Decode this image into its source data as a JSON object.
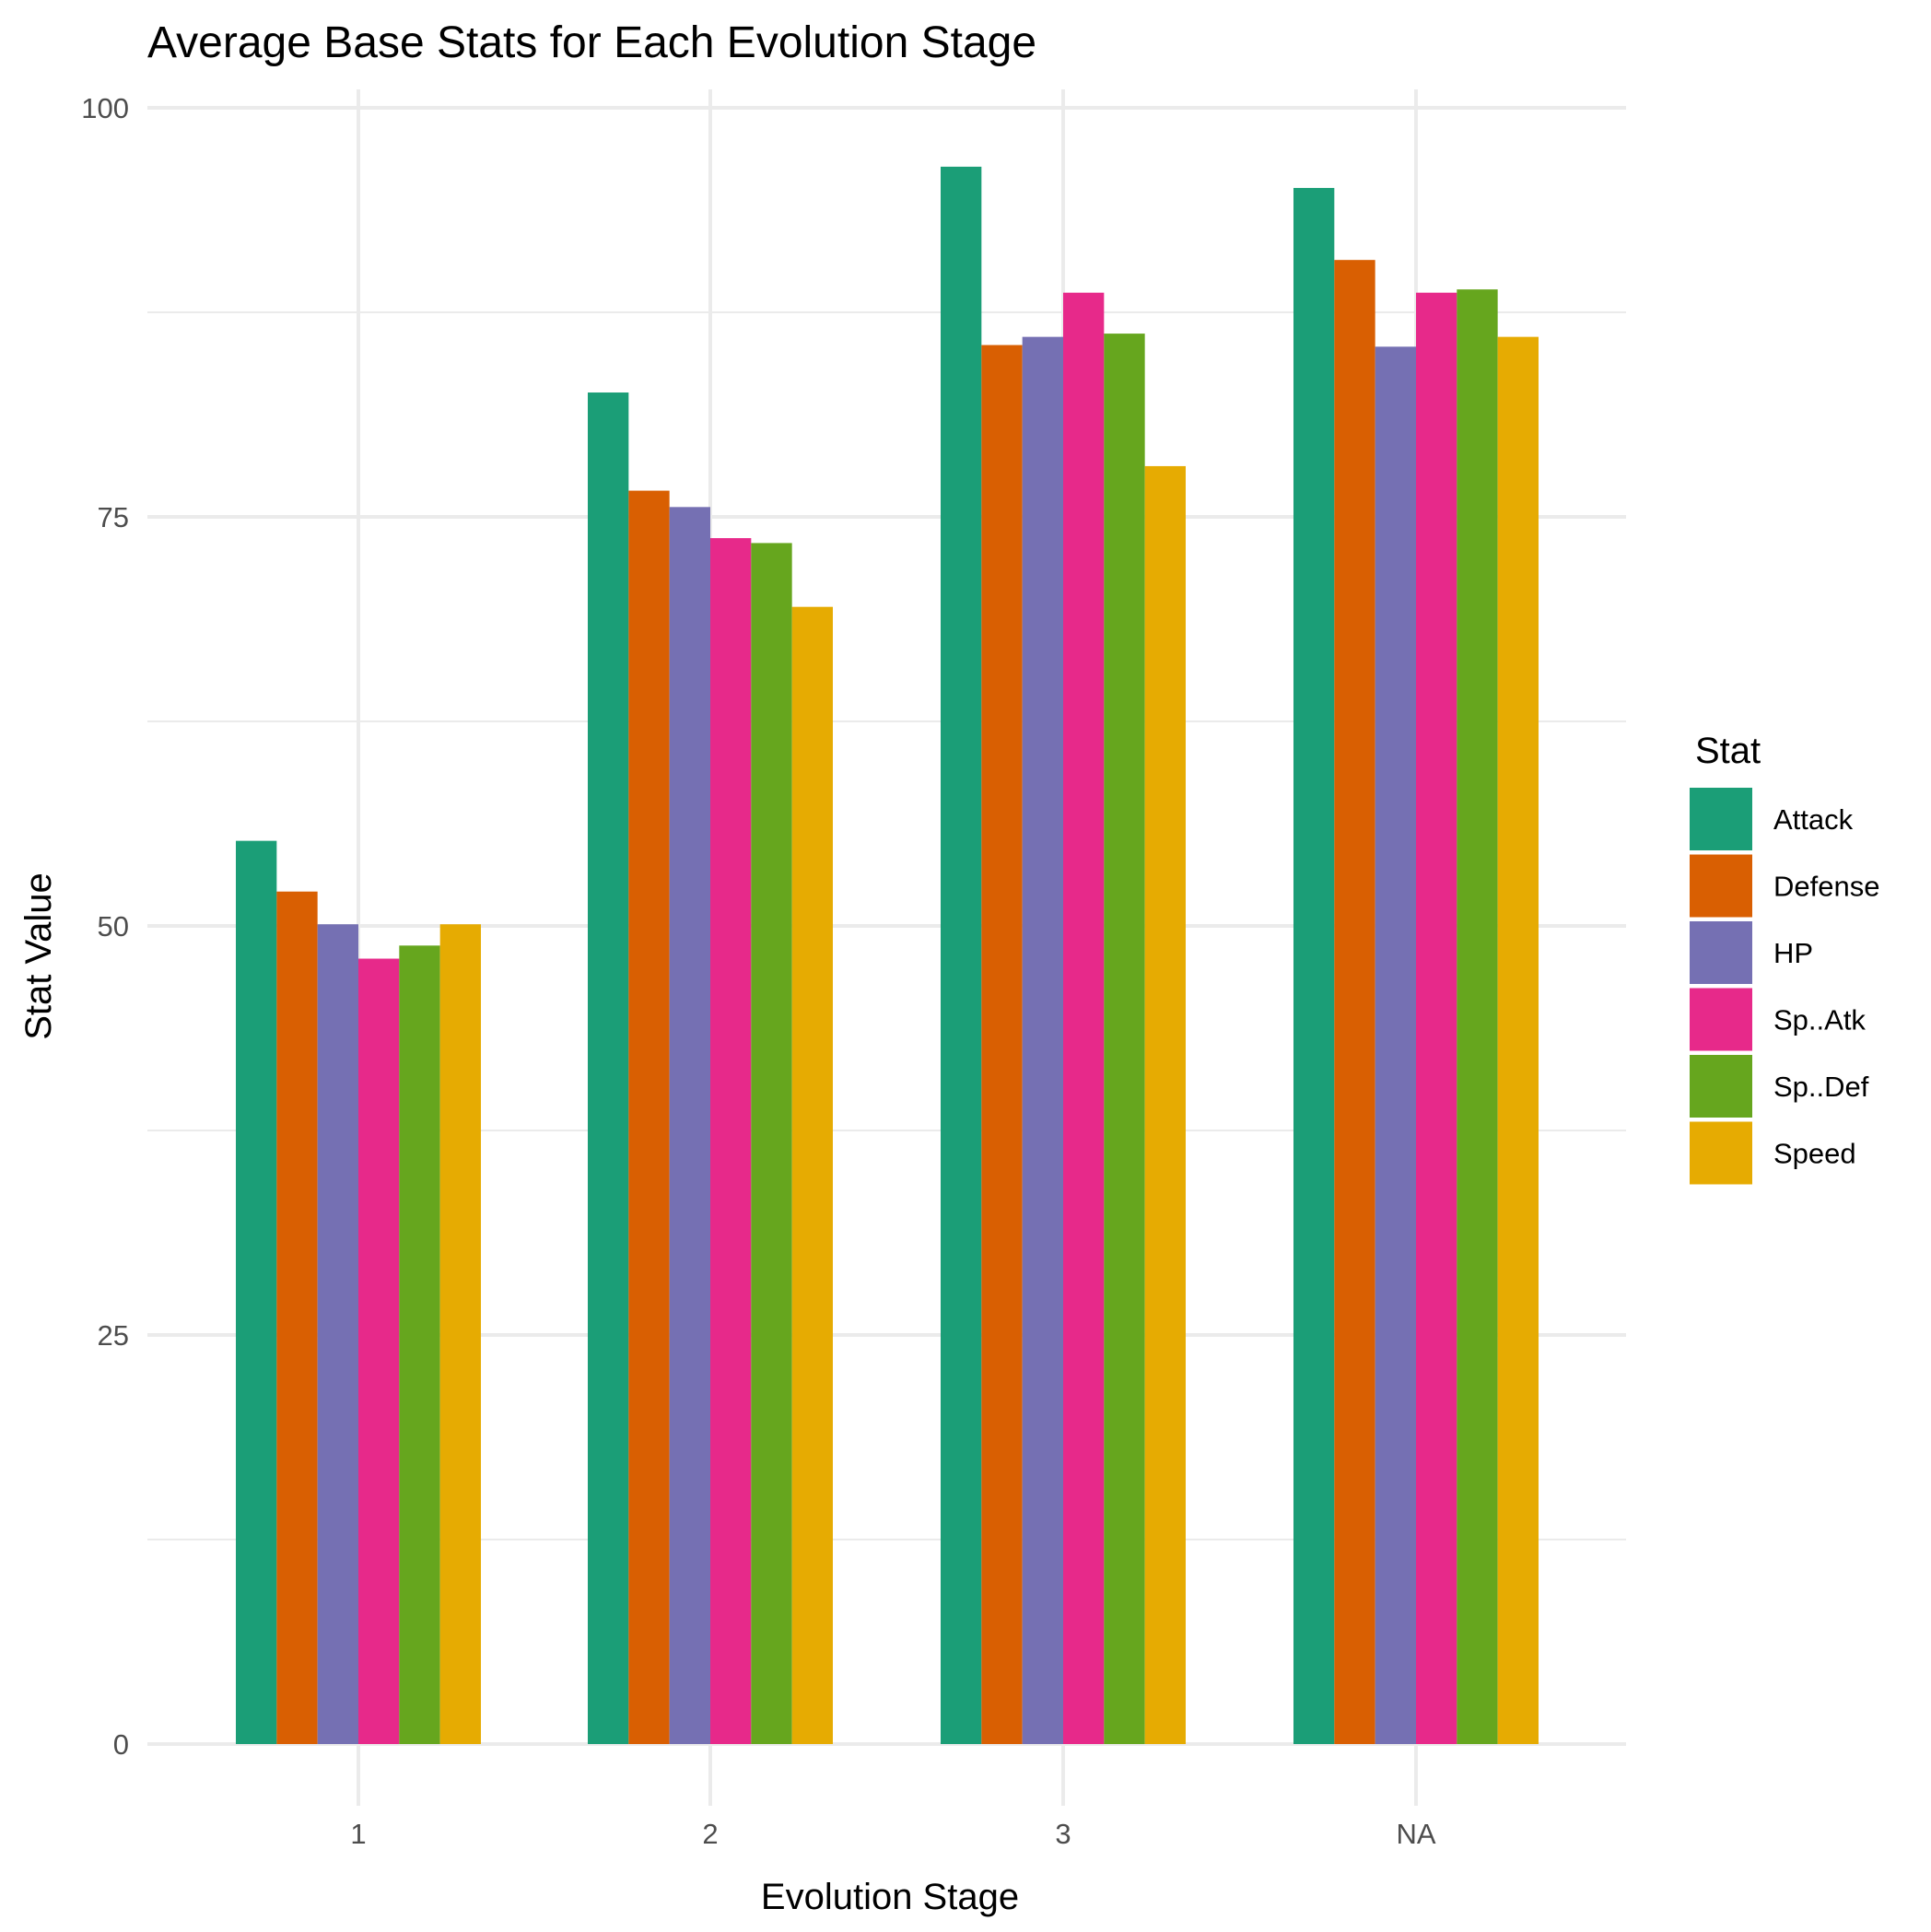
{
  "chart_data": {
    "type": "bar",
    "title": "Average Base Stats for Each Evolution Stage",
    "xlabel": "Evolution Stage",
    "ylabel": "Stat Value",
    "categories": [
      "1",
      "2",
      "3",
      "NA"
    ],
    "ylim": [
      0,
      100
    ],
    "yticks": [
      0,
      25,
      50,
      75,
      100
    ],
    "grid": true,
    "legend": {
      "title": "Stat",
      "position": "right"
    },
    "series": [
      {
        "name": "Attack",
        "color": "#1b9e77",
        "values": [
          55.2,
          82.6,
          96.4,
          95.1
        ]
      },
      {
        "name": "Defense",
        "color": "#d95f02",
        "values": [
          52.1,
          76.6,
          85.5,
          90.7
        ]
      },
      {
        "name": "HP",
        "color": "#7570b3",
        "values": [
          50.1,
          75.6,
          86.0,
          85.4
        ]
      },
      {
        "name": "Sp..Atk",
        "color": "#e7298a",
        "values": [
          48.0,
          73.7,
          88.7,
          88.7
        ]
      },
      {
        "name": "Sp..Def",
        "color": "#66a61e",
        "values": [
          48.8,
          73.4,
          86.2,
          88.9
        ]
      },
      {
        "name": "Speed",
        "color": "#e6ab02",
        "values": [
          50.1,
          69.5,
          78.1,
          86.0
        ]
      }
    ]
  }
}
